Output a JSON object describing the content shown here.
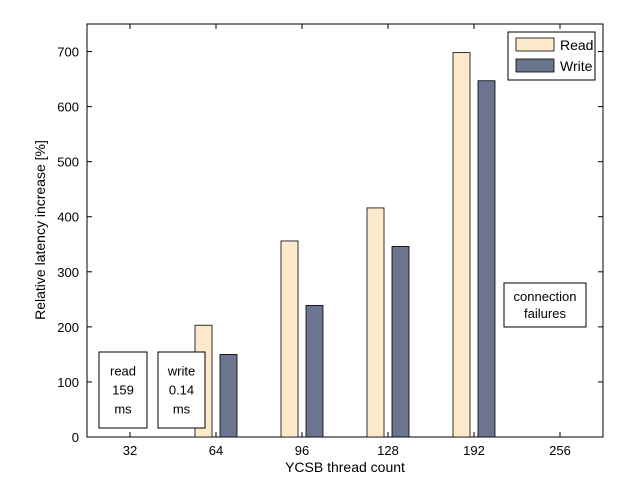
{
  "chart_data": {
    "type": "bar",
    "xlabel": "YCSB thread count",
    "ylabel": "Relative latency increase [%]",
    "categories": [
      "32",
      "64",
      "96",
      "128",
      "192",
      "256"
    ],
    "ylim": [
      0,
      750
    ],
    "yticks": [
      0,
      100,
      200,
      300,
      400,
      500,
      600,
      700
    ],
    "grid": false,
    "legend_position": "top-right",
    "series": [
      {
        "name": "Read",
        "color": "#fdeacd",
        "values": [
          null,
          203,
          356,
          416,
          698,
          null
        ]
      },
      {
        "name": "Write",
        "color": "#6b7590",
        "values": [
          null,
          150,
          239,
          346,
          647,
          null
        ]
      }
    ],
    "annotations": [
      {
        "id": "read-baseline",
        "lines": [
          "read",
          "159",
          "ms"
        ]
      },
      {
        "id": "write-baseline",
        "lines": [
          "write",
          "0.14",
          "ms"
        ]
      },
      {
        "id": "connection-failures",
        "lines": [
          "connection",
          "failures"
        ]
      }
    ]
  }
}
